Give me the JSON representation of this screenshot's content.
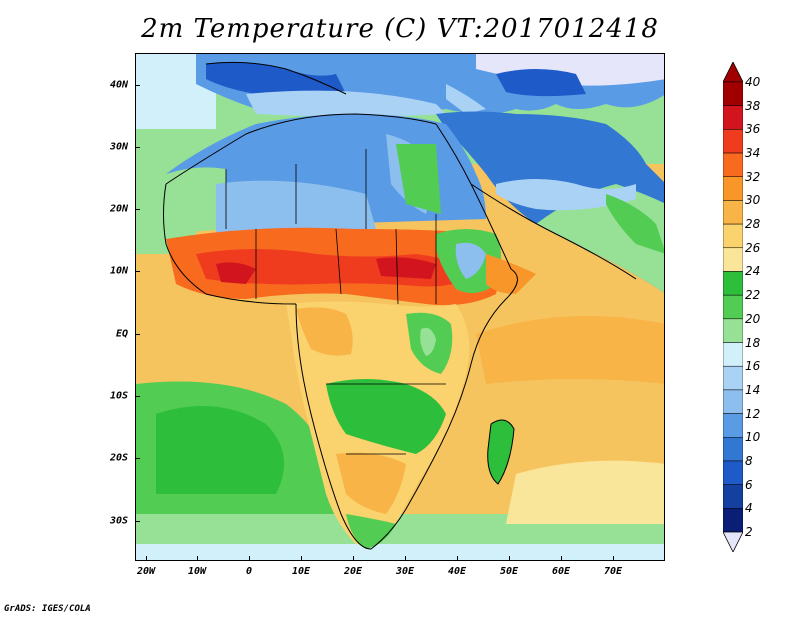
{
  "title": "2m Temperature (C) VT:2017012418",
  "credit": "GrADS: IGES/COLA",
  "lat_labels": [
    "40N",
    "30N",
    "20N",
    "10N",
    "EQ",
    "10S",
    "20S",
    "30S"
  ],
  "lon_labels": [
    "20W",
    "10W",
    "0",
    "10E",
    "20E",
    "30E",
    "40E",
    "50E",
    "60E",
    "70E"
  ],
  "colorbar": {
    "levels": [
      "40",
      "38",
      "36",
      "34",
      "32",
      "30",
      "28",
      "26",
      "24",
      "22",
      "20",
      "18",
      "16",
      "14",
      "12",
      "10",
      "8",
      "6",
      "4",
      "2"
    ],
    "colors": [
      "#a00000",
      "#d2141e",
      "#f03c1e",
      "#f86a1e",
      "#f8962a",
      "#f8b446",
      "#fad26e",
      "#fae69a",
      "#2dbe3c",
      "#52cc52",
      "#96e196",
      "#d2f0fa",
      "#aad2f5",
      "#8cbeee",
      "#5a9be6",
      "#3278d2",
      "#1e5ac8",
      "#1440a0",
      "#0a1e78"
    ],
    "under_color": "#e6e6fa",
    "over_color": "#a00000"
  }
}
